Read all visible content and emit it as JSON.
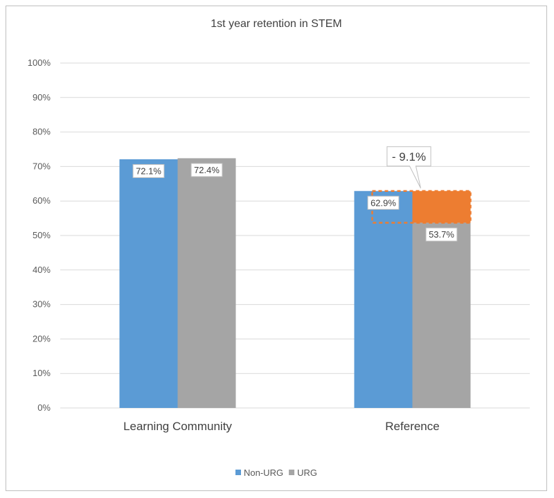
{
  "chart_data": {
    "type": "bar",
    "title": "1st year retention in STEM",
    "categories": [
      "Learning Community",
      "Reference"
    ],
    "series": [
      {
        "name": "Non-URG",
        "values": [
          72.1,
          62.9
        ],
        "labels": [
          "72.1%",
          "62.9%"
        ],
        "color": "#5b9bd5"
      },
      {
        "name": "URG",
        "values": [
          72.4,
          53.7
        ],
        "labels": [
          "72.4%",
          "53.7%"
        ],
        "color": "#a5a5a5"
      }
    ],
    "y_ticks": [
      "0%",
      "10%",
      "20%",
      "30%",
      "40%",
      "50%",
      "60%",
      "70%",
      "80%",
      "90%",
      "100%"
    ],
    "ylim": [
      0,
      100
    ],
    "grid": true,
    "legend_position": "bottom",
    "annotation": {
      "text": "- 9.1%",
      "category": "Reference",
      "from": 53.7,
      "to": 62.9,
      "gap_color": "#ed7d31"
    },
    "gridline_color": "#d9d9d9"
  }
}
